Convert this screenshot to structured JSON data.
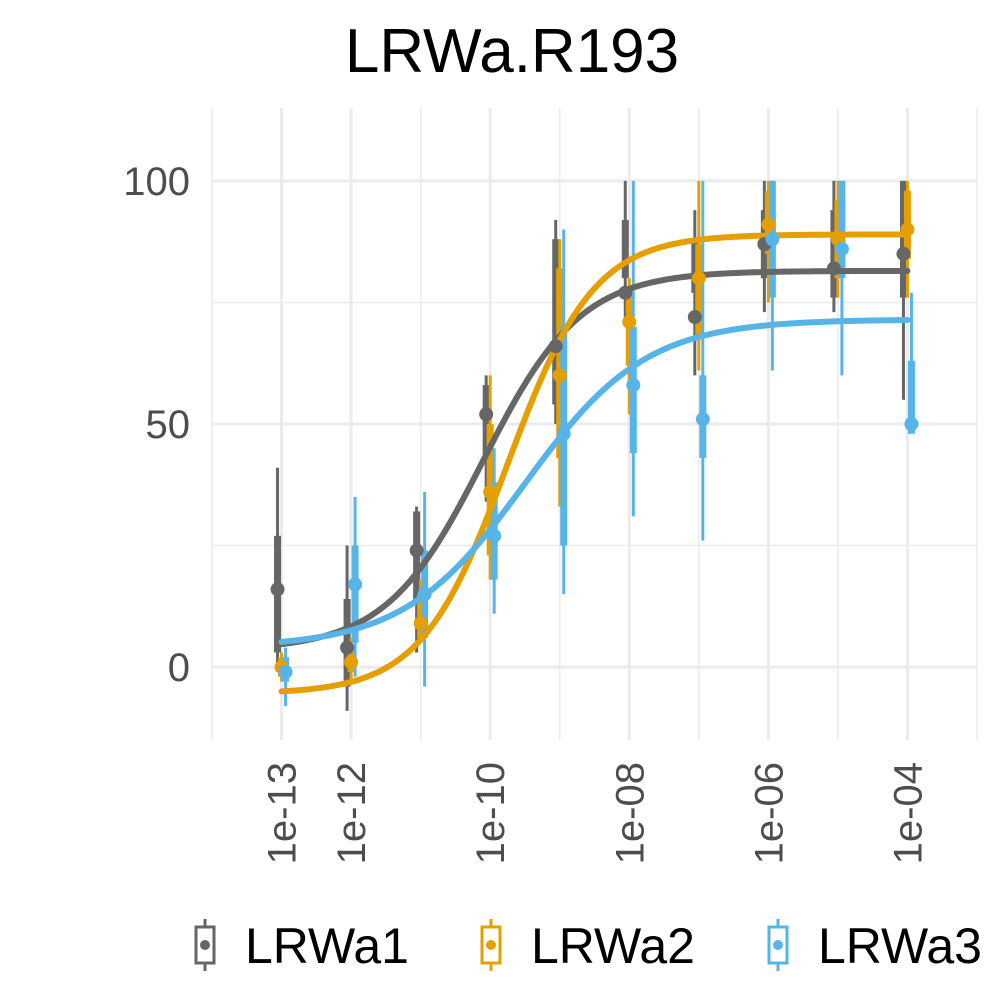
{
  "chart_data": {
    "type": "line",
    "title": "LRWa.R193",
    "xlabel": "",
    "ylabel": "",
    "x_scale": "log10",
    "xlim": [
      1e-14,
      0.001
    ],
    "ylim": [
      -15,
      115
    ],
    "grid": true,
    "legend_position": "bottom",
    "x_ticks": [
      {
        "value": 1e-13,
        "label": "1e-13"
      },
      {
        "value": 1e-12,
        "label": "1e-12"
      },
      {
        "value": 1e-10,
        "label": "1e-10"
      },
      {
        "value": 1e-08,
        "label": "1e-08"
      },
      {
        "value": 1e-06,
        "label": "1e-06"
      },
      {
        "value": 0.0001,
        "label": "1e-04"
      }
    ],
    "y_ticks": [
      {
        "value": 0,
        "label": "0"
      },
      {
        "value": 50,
        "label": "50"
      },
      {
        "value": 100,
        "label": "100"
      }
    ],
    "series": [
      {
        "name": "LRWa1",
        "color": "#666666",
        "points": [
          {
            "x": 1e-13,
            "y": 16,
            "lo": 3,
            "hi": 27,
            "lo2": -1,
            "hi2": 41
          },
          {
            "x": 1e-12,
            "y": 4,
            "lo": -4,
            "hi": 14,
            "lo2": -9,
            "hi2": 25
          },
          {
            "x": 1e-11,
            "y": 24,
            "lo": 13,
            "hi": 32,
            "lo2": 3,
            "hi2": 33
          },
          {
            "x": 1e-10,
            "y": 52,
            "lo": 42,
            "hi": 58,
            "lo2": 34,
            "hi2": 60
          },
          {
            "x": 1e-09,
            "y": 66,
            "lo": 54,
            "hi": 88,
            "lo2": 50,
            "hi2": 92
          },
          {
            "x": 1e-08,
            "y": 77,
            "lo": 80,
            "hi": 92,
            "lo2": 71,
            "hi2": 100
          },
          {
            "x": 1e-07,
            "y": 72,
            "lo": 77,
            "hi": 88,
            "lo2": 60,
            "hi2": 94
          },
          {
            "x": 1e-06,
            "y": 87,
            "lo": 80,
            "hi": 94,
            "lo2": 73,
            "hi2": 100
          },
          {
            "x": 1e-05,
            "y": 82,
            "lo": 76,
            "hi": 94,
            "lo2": 73,
            "hi2": 100
          },
          {
            "x": 0.0001,
            "y": 85,
            "lo": 76,
            "hi": 100,
            "lo2": 55,
            "hi2": 100
          }
        ],
        "curve": {
          "bottom": 3.5,
          "top": 81.5,
          "log_ec50": -10.1,
          "hill": 0.62
        }
      },
      {
        "name": "LRWa2",
        "color": "#E69F00",
        "points": [
          {
            "x": 1e-13,
            "y": 0,
            "lo": -2,
            "hi": 2,
            "lo2": -3,
            "hi2": 3
          },
          {
            "x": 1e-12,
            "y": 1,
            "lo": -1,
            "hi": 4,
            "lo2": -3,
            "hi2": 6
          },
          {
            "x": 1e-11,
            "y": 9,
            "lo": 6,
            "hi": 15,
            "lo2": 5,
            "hi2": 18
          },
          {
            "x": 1e-10,
            "y": 36,
            "lo": 23,
            "hi": 50,
            "lo2": 18,
            "hi2": 60
          },
          {
            "x": 1e-09,
            "y": 60,
            "lo": 43,
            "hi": 82,
            "lo2": 33,
            "hi2": 88
          },
          {
            "x": 1e-08,
            "y": 71,
            "lo": 62,
            "hi": 78,
            "lo2": 52,
            "hi2": 80
          },
          {
            "x": 1e-07,
            "y": 80,
            "lo": 68,
            "hi": 87,
            "lo2": 61,
            "hi2": 100
          },
          {
            "x": 1e-06,
            "y": 91,
            "lo": 85,
            "hi": 98,
            "lo2": 75,
            "hi2": 100
          },
          {
            "x": 1e-05,
            "y": 88,
            "lo": 80,
            "hi": 96,
            "lo2": 76,
            "hi2": 100
          },
          {
            "x": 0.0001,
            "y": 90,
            "lo": 84,
            "hi": 98,
            "lo2": 76,
            "hi2": 100
          }
        ],
        "curve": {
          "bottom": -5.5,
          "top": 89,
          "log_ec50": -9.75,
          "hill": 0.7
        }
      },
      {
        "name": "LRWa3",
        "color": "#56B4E9",
        "points": [
          {
            "x": 1e-13,
            "y": -1,
            "lo": -3,
            "hi": 2,
            "lo2": -8,
            "hi2": 4
          },
          {
            "x": 1e-12,
            "y": 17,
            "lo": 5,
            "hi": 25,
            "lo2": -2,
            "hi2": 35
          },
          {
            "x": 1e-11,
            "y": 15,
            "lo": 6,
            "hi": 24,
            "lo2": -4,
            "hi2": 36
          },
          {
            "x": 1e-10,
            "y": 27,
            "lo": 18,
            "hi": 38,
            "lo2": 11,
            "hi2": 45
          },
          {
            "x": 1e-09,
            "y": 48,
            "lo": 25,
            "hi": 70,
            "lo2": 15,
            "hi2": 90
          },
          {
            "x": 1e-08,
            "y": 58,
            "lo": 44,
            "hi": 70,
            "lo2": 31,
            "hi2": 100
          },
          {
            "x": 1e-07,
            "y": 51,
            "lo": 43,
            "hi": 60,
            "lo2": 26,
            "hi2": 100
          },
          {
            "x": 1e-06,
            "y": 88,
            "lo": 76,
            "hi": 100,
            "lo2": 61,
            "hi2": 100
          },
          {
            "x": 1e-05,
            "y": 86,
            "lo": 80,
            "hi": 100,
            "lo2": 60,
            "hi2": 100
          },
          {
            "x": 0.0001,
            "y": 50,
            "lo": 48,
            "hi": 63,
            "lo2": 48,
            "hi2": 77
          }
        ],
        "curve": {
          "bottom": 4,
          "top": 71.5,
          "log_ec50": -9.5,
          "hill": 0.5
        }
      }
    ]
  }
}
